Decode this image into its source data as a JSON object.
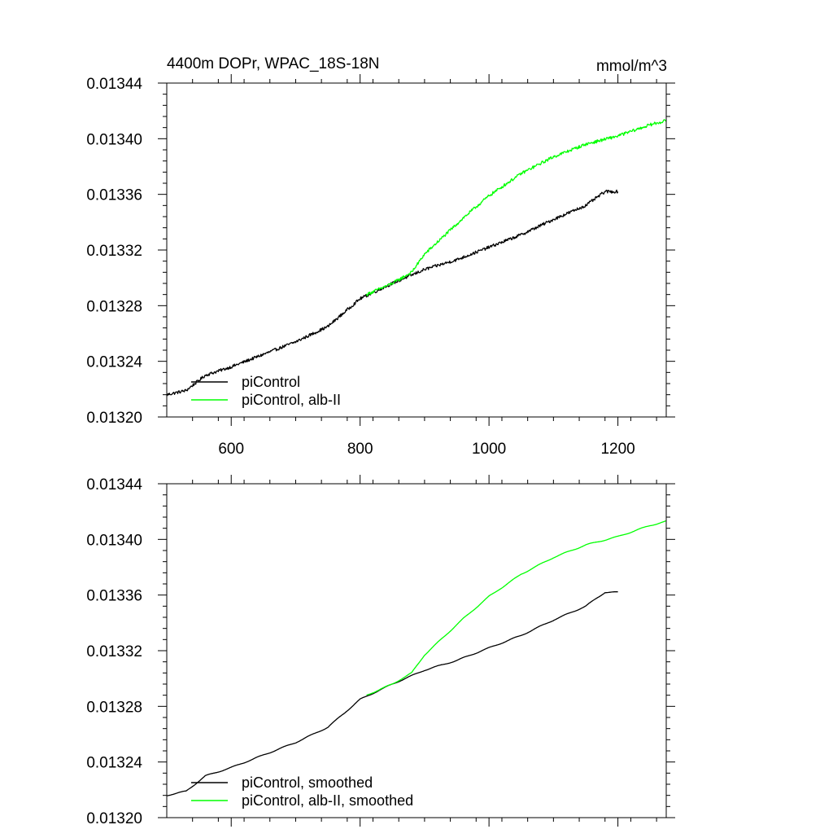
{
  "chart_data": [
    {
      "type": "line",
      "title": "4400m DOPr, WPAC_18S-18N",
      "units": "mmol/m^3",
      "xlim": [
        500,
        1275
      ],
      "ylim": [
        0.0132,
        0.01344
      ],
      "x_ticks": [
        600,
        800,
        1000,
        1200
      ],
      "x_tick_labels": [
        "600",
        "800",
        "1000",
        "1200"
      ],
      "y_ticks": [
        0.0132,
        0.01324,
        0.01328,
        0.01332,
        0.01336,
        0.0134,
        0.01344
      ],
      "y_tick_labels": [
        "0.01320",
        "0.01324",
        "0.01328",
        "0.01332",
        "0.01336",
        "0.01340",
        "0.01344"
      ],
      "legend_position": "bottom-left",
      "noisy": true,
      "series": [
        {
          "name": "piControl",
          "color": "#000000",
          "points": [
            [
              500,
              0.013216
            ],
            [
              530,
              0.013219
            ],
            [
              560,
              0.01323
            ],
            [
              580,
              0.013233
            ],
            [
              600,
              0.013236
            ],
            [
              650,
              0.013245
            ],
            [
              700,
              0.013254
            ],
            [
              750,
              0.013265
            ],
            [
              800,
              0.013285
            ],
            [
              850,
              0.013296
            ],
            [
              900,
              0.013306
            ],
            [
              950,
              0.013313
            ],
            [
              1000,
              0.013322
            ],
            [
              1050,
              0.013331
            ],
            [
              1100,
              0.013342
            ],
            [
              1150,
              0.013352
            ],
            [
              1180,
              0.013362
            ],
            [
              1200,
              0.013362
            ]
          ]
        },
        {
          "name": "piControl, alb-II",
          "color": "#00ff00",
          "points": [
            [
              810,
              0.013288
            ],
            [
              850,
              0.013296
            ],
            [
              880,
              0.013304
            ],
            [
              900,
              0.013317
            ],
            [
              930,
              0.01333
            ],
            [
              960,
              0.013343
            ],
            [
              1000,
              0.013359
            ],
            [
              1050,
              0.013375
            ],
            [
              1100,
              0.013387
            ],
            [
              1150,
              0.013396
            ],
            [
              1200,
              0.013402
            ],
            [
              1250,
              0.01341
            ],
            [
              1275,
              0.013413
            ]
          ]
        }
      ]
    },
    {
      "type": "line",
      "xlim": [
        500,
        1275
      ],
      "ylim": [
        0.0132,
        0.01344
      ],
      "x_ticks": [
        600,
        800,
        1000,
        1200
      ],
      "y_ticks": [
        0.0132,
        0.01324,
        0.01328,
        0.01332,
        0.01336,
        0.0134,
        0.01344
      ],
      "y_tick_labels": [
        "0.01320",
        "0.01324",
        "0.01328",
        "0.01332",
        "0.01336",
        "0.01340",
        "0.01344"
      ],
      "legend_position": "bottom-left",
      "noisy": false,
      "series": [
        {
          "name": "piControl, smoothed",
          "color": "#000000",
          "points": [
            [
              500,
              0.013216
            ],
            [
              530,
              0.013219
            ],
            [
              560,
              0.01323
            ],
            [
              580,
              0.013233
            ],
            [
              600,
              0.013236
            ],
            [
              650,
              0.013245
            ],
            [
              700,
              0.013254
            ],
            [
              750,
              0.013265
            ],
            [
              800,
              0.013285
            ],
            [
              850,
              0.013296
            ],
            [
              900,
              0.013306
            ],
            [
              950,
              0.013313
            ],
            [
              1000,
              0.013322
            ],
            [
              1050,
              0.013331
            ],
            [
              1100,
              0.013342
            ],
            [
              1150,
              0.013352
            ],
            [
              1180,
              0.013362
            ],
            [
              1200,
              0.013362
            ]
          ]
        },
        {
          "name": "piControl, alb-II, smoothed",
          "color": "#00ff00",
          "points": [
            [
              810,
              0.013288
            ],
            [
              850,
              0.013296
            ],
            [
              880,
              0.013304
            ],
            [
              900,
              0.013317
            ],
            [
              930,
              0.01333
            ],
            [
              960,
              0.013343
            ],
            [
              1000,
              0.013359
            ],
            [
              1050,
              0.013375
            ],
            [
              1100,
              0.013387
            ],
            [
              1150,
              0.013396
            ],
            [
              1200,
              0.013402
            ],
            [
              1250,
              0.01341
            ],
            [
              1275,
              0.013413
            ]
          ]
        }
      ]
    }
  ]
}
